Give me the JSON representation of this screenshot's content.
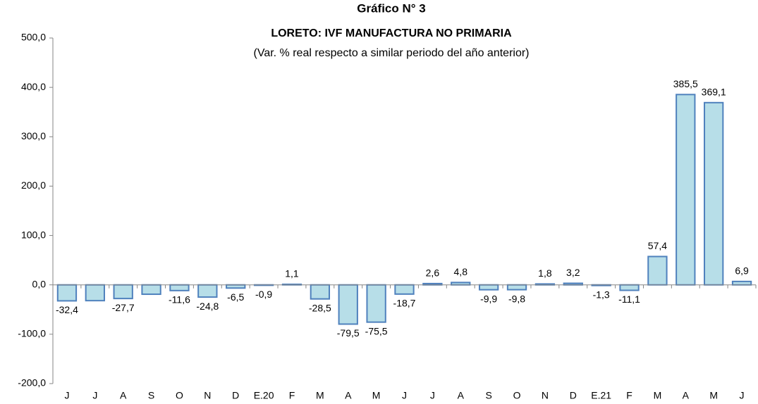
{
  "chart_data": {
    "type": "bar",
    "title": "Gráfico N° 3",
    "subtitle": "LORETO: IVF MANUFACTURA NO PRIMARIA",
    "note": "(Var. % real respecto a similar periodo del año anterior)",
    "categories": [
      "J",
      "J",
      "A",
      "S",
      "O",
      "N",
      "D",
      "E.20",
      "F",
      "M",
      "A",
      "M",
      "J",
      "J",
      "A",
      "S",
      "O",
      "N",
      "D",
      "E.21",
      "F",
      "M",
      "A",
      "M",
      "J"
    ],
    "values": [
      -32.4,
      -32,
      -27.7,
      -19,
      -11.6,
      -24.8,
      -6.5,
      -0.9,
      1.1,
      -28.5,
      -79.5,
      -75.5,
      -18.7,
      2.6,
      4.8,
      -9.9,
      -9.8,
      1.8,
      3.2,
      -1.3,
      -11.1,
      57.4,
      385.5,
      369.1,
      6.9
    ],
    "value_labels": [
      "-32,4",
      null,
      "-27,7",
      null,
      "-11,6",
      "-24,8",
      "-6,5",
      "-0,9",
      "1,1",
      "-28,5",
      "-79,5",
      "-75,5",
      "-18,7",
      "2,6",
      "4,8",
      "-9,9",
      "-9,8",
      "1,8",
      "3,2",
      "-1,3",
      "-11,1",
      "57,4",
      "385,5",
      "369,1",
      "6,9"
    ],
    "color": "#b7dee8",
    "edge_color": "#4f81bd",
    "ylim": [
      -200,
      500
    ],
    "yticks": [
      {
        "value": -200,
        "label": "-200,0"
      },
      {
        "value": -100,
        "label": "-100,0"
      },
      {
        "value": 0,
        "label": "0,0"
      },
      {
        "value": 100,
        "label": "100,0"
      },
      {
        "value": 200,
        "label": "200,0"
      },
      {
        "value": 300,
        "label": "300,0"
      },
      {
        "value": 400,
        "label": "400,0"
      },
      {
        "value": 500,
        "label": "500,0"
      }
    ],
    "grid": false
  }
}
